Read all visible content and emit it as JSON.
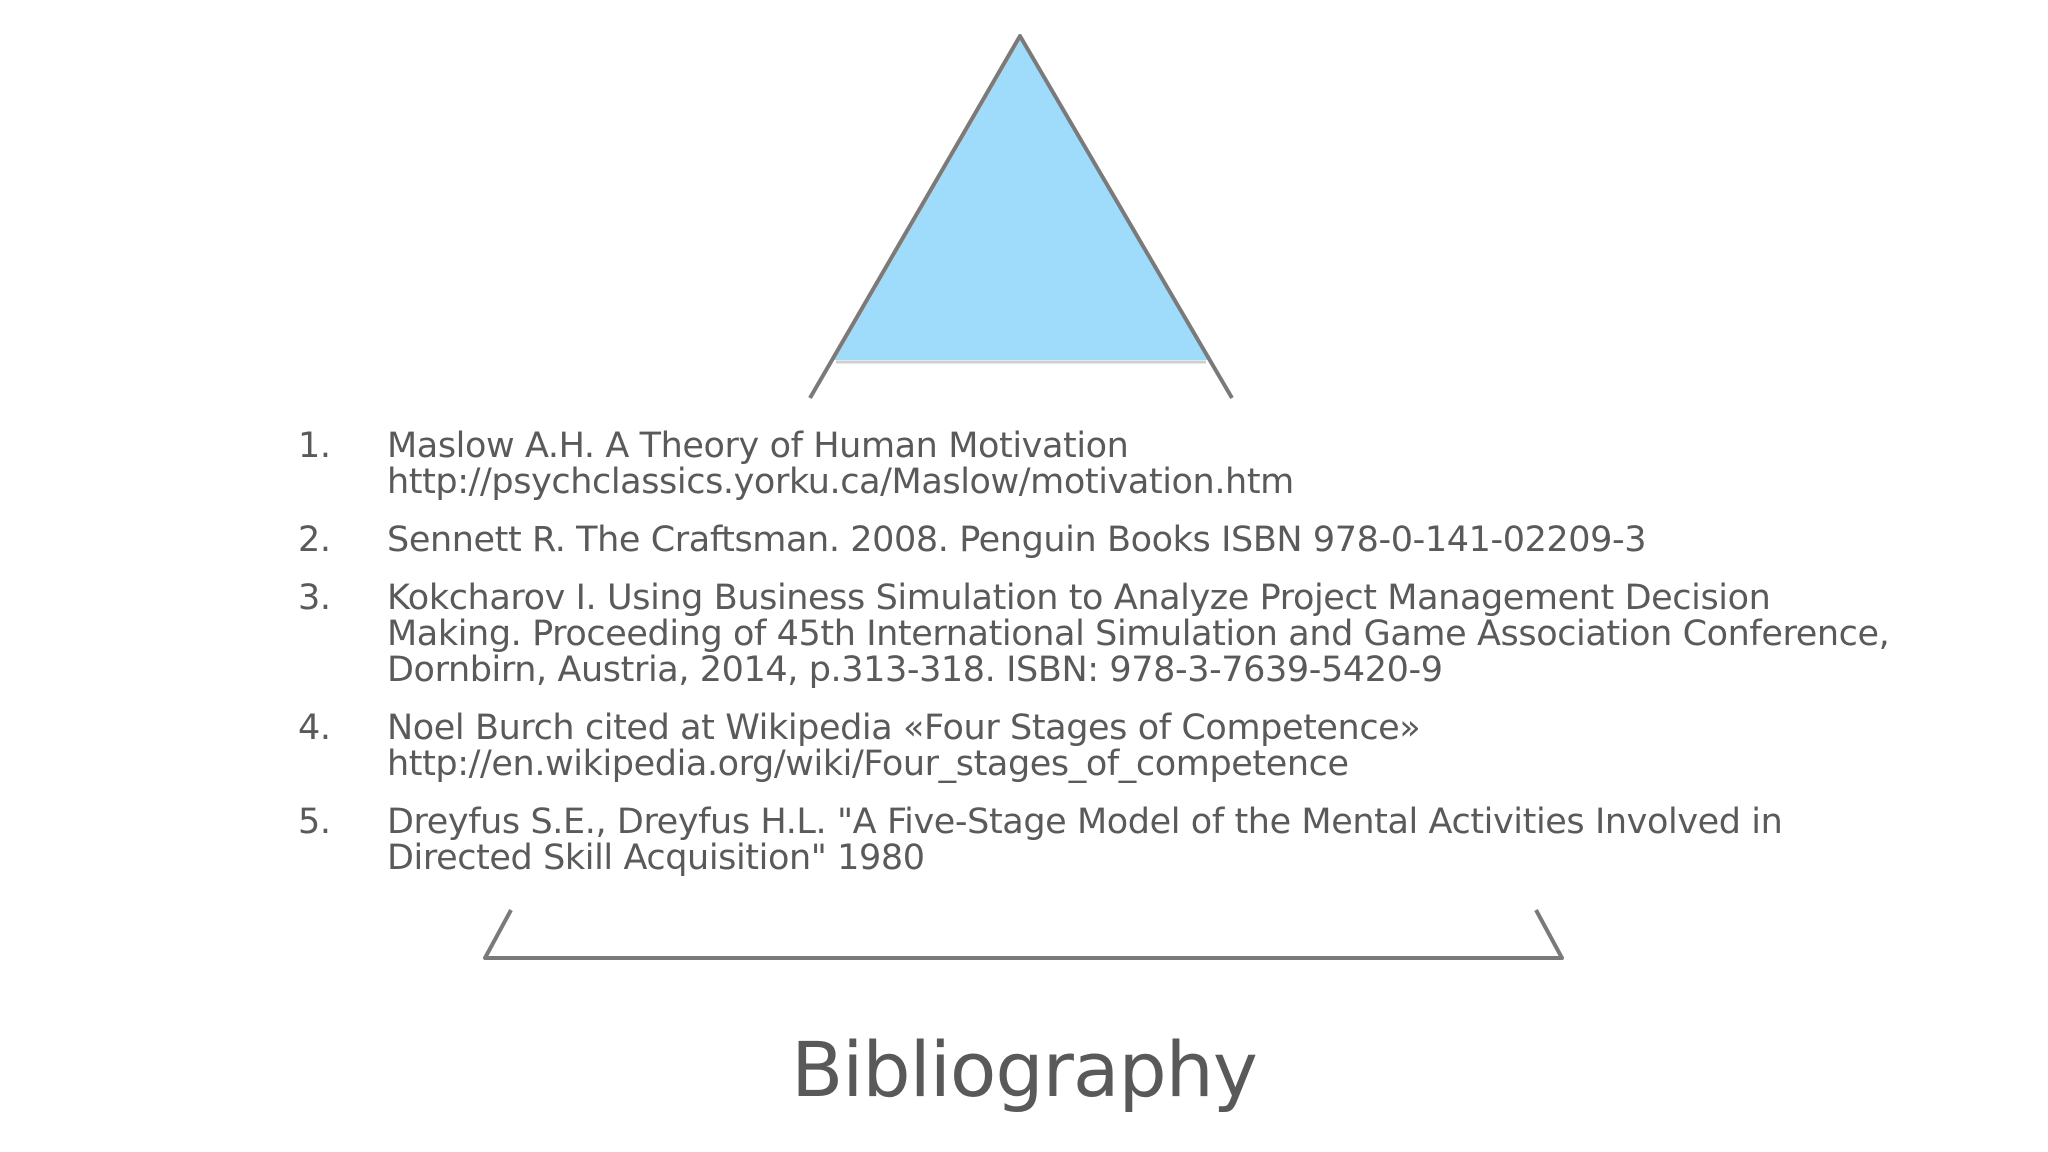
{
  "slide": {
    "title": "Bibliography",
    "accent_fill": "#9fdcfb",
    "line_color": "#7a7a7a",
    "text_color": "#5a5a5a"
  },
  "references": [
    {
      "number": "1.",
      "lines": [
        "Maslow A.H. A Theory of Human Motivation",
        "http://psychclassics.yorku.ca/Maslow/motivation.htm"
      ]
    },
    {
      "number": "2.",
      "lines": [
        "Sennett R. The Craftsman. 2008. Penguin Books ISBN 978-0-141-02209-3"
      ]
    },
    {
      "number": "3.",
      "lines": [
        "Kokcharov I. Using Business Simulation to Analyze Project Management Decision",
        "Making. Proceeding of 45th International Simulation and Game Association Conference,",
        "Dornbirn, Austria, 2014, p.313-318. ISBN: 978-3-7639-5420-9"
      ]
    },
    {
      "number": "4.",
      "lines": [
        "Noel Burch cited at Wikipedia «Four Stages of Competence»",
        "http://en.wikipedia.org/wiki/Four_stages_of_competence"
      ]
    },
    {
      "number": "5.",
      "lines": [
        "Dreyfus S.E., Dreyfus H.L. \"A Five-Stage Model of the Mental Activities Involved in",
        "Directed Skill Acquisition\" 1980"
      ]
    }
  ]
}
